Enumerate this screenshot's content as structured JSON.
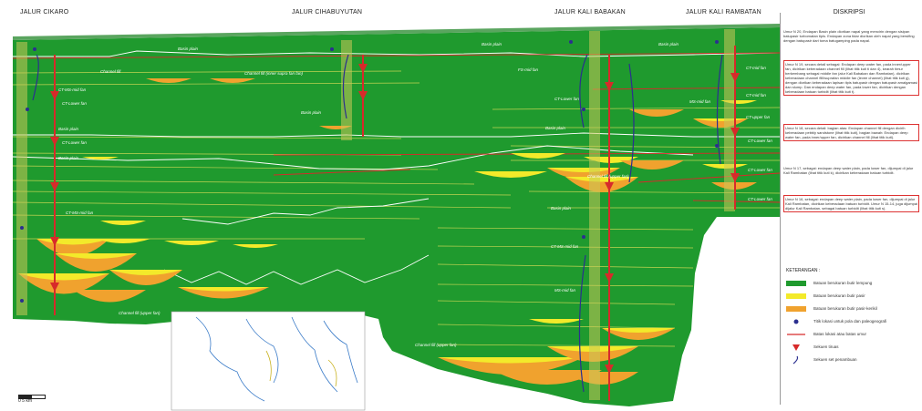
{
  "headers": {
    "cikaro": "JALUR CIKARO",
    "cihabuyutan": "JALUR CIHABUYUTAN",
    "kali_babakan": "JALUR KALI BABAKAN",
    "kali_rambatan": "JALUR KALI RAMBATAN"
  },
  "panel": {
    "title": "DISKRIPSI",
    "descriptions": [
      "Umur N 20, Endapan Basin plain diorikan napal yang mencirin dengan sisipan batupasir turbomatan tipis. Endapan zona tidar diorikan oleh napal yang bersifing dengan batupasir dari toma batugamping pada napal.",
      "Umur N 19, secara detail sebagai: Endapan deep water fan, pada inner/upper fan, dicirikan keberadaan channel fill (lihat titik kuti ti dan 4), kearah timur berkembang sebagai middle fan (alur Kali Babakan dan Rambatan), dicirikan keberadaan channel filll/suprafan middle fan (levee channel) (lihat titik kuti g), dengan diorikan keberadaan lapisan tipis batupasir dengan batupasir amalgamasi dan slump. Dan endapan deep water fan, pada lower fan, dicirikan dengan keberadaan batuan turbidit (lihat titik kuti t).",
      "Umur N 18, secara detail: bagian atas: Endapan channel fill dengan dicirih keberadaan pebbly sandstone (lihat titik kuti), bagian bawah: Endapan deep water fan, pada inner/upper fan, dicirikan channel fill (lihat titik kuti).",
      "Umur N 17, sebagai: endapan deep water plain, pada lower fan, dijumpai di jalur Kali Rambatan (lihat titik kuti k), dicirikan keberadaan batuan turbidit.",
      "Umur N 16, sebagai: endapan deep water plain, pada lower fan, dijumpai di jalur Kali Rambatan, dicirikan keberadaan batuan turbidit. Umur N 15-14, juga dijumpai dijalur Kali Rambatan, sebagai batuan turbidit (lihat titik kuti s)."
    ],
    "legend_title": "KETERANGAN :",
    "legend": [
      {
        "label": "Batuan berukuran butir lempung",
        "color": "#1f9a2e",
        "kind": "box"
      },
      {
        "label": "Batuan berukuran butir pasir",
        "color": "#f3ea2a",
        "kind": "box"
      },
      {
        "label": "Batuan berukuran butir pasir-kerikil",
        "color": "#f0a22e",
        "kind": "box"
      },
      {
        "label": "Titik lokasi untuk pola dan paleogeografi",
        "color": "#2b2f8f",
        "kind": "dot"
      },
      {
        "label": "Batas lokasi atau batas umur",
        "color": "#d72a2a",
        "kind": "line"
      },
      {
        "label": "Sekuen tiruas",
        "color": "#d72a2a",
        "kind": "tri"
      },
      {
        "label": "Sekuen set penambuan",
        "color": "#2b2f8f",
        "kind": "arc"
      }
    ]
  },
  "section": {
    "labels": {
      "basin_plain_1": "Basin plain",
      "basin_plain_2": "Basin plain",
      "basin_plain_3": "Basin plain",
      "basin_plain_4": "Basin plain",
      "basin_plain_5": "Basin plain",
      "basin_plain_6": "Basin plain",
      "basin_plain_7": "Basin plain",
      "basin_plain_8": "Basin plain",
      "channel_fill_1": "Channel fill (inner supra fan fan)",
      "channel_fill_2": "Channel fill (upper fan)",
      "channel_fill_3": "Channel fill (upper fan)",
      "channel_fill_4": "Channel fill (upper fan)",
      "channel_fill_5": "Channel fill",
      "ct_ms_mid_fan": "CT-MS-mid fan",
      "ct_lower_fan": "CT-Lower fan",
      "ct_lower_fan_2": "CT-Lower fan",
      "ct_ms_mid_fan_2": "CT-MS-mid fan",
      "fs_mid_fan": "FS-mid fan",
      "ct_mid_fan": "CT-mid fan",
      "ms_mid_fan": "MS-mid fan",
      "ms_mid_fan_2": "MS-mid fan",
      "ct_lower_fan_r": "CT-Lower fan",
      "ct_lower_fan_r2": "CT-Lower fan",
      "ct_lower_fan_r3": "CT-Lower fan",
      "ct_upper_fan": "CT-upper fan",
      "ct_lower_fan_c": "CT-Lower fan",
      "ct_ms_mid_fan_c": "CT-MS-mid fan",
      "ct_mid_fan_r": "CT-mid fan",
      "ct_lower_fan_c2": "CT-Lower fan"
    },
    "scale": "0      5 km"
  },
  "colors": {
    "mud": "#1f9a2e",
    "sand": "#f3ea2a",
    "gravel": "#f0a22e",
    "red": "#d72a2a",
    "blue": "#2b2f8f"
  }
}
